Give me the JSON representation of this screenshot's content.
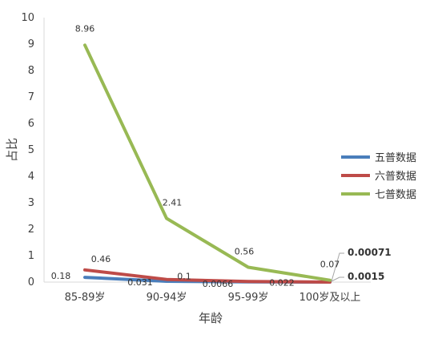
{
  "chart_data": {
    "type": "line",
    "title": "",
    "xlabel": "年龄",
    "ylabel": "占比",
    "categories": [
      "85-89岁",
      "90-94岁",
      "95-99岁",
      "100岁及以上"
    ],
    "ylim": [
      0,
      10
    ],
    "yticks": [
      "0",
      "1",
      "2",
      "3",
      "4",
      "5",
      "6",
      "7",
      "8",
      "9",
      "10"
    ],
    "grid": false,
    "legend_position": "right",
    "series": [
      {
        "name": "五普数据",
        "color": "#4a7ebb",
        "values": [
          0.18,
          0.031,
          0.0066,
          0.0015
        ],
        "labels": [
          "0.18",
          "0.031",
          "0.0066",
          "0.0015"
        ]
      },
      {
        "name": "六普数据",
        "color": "#be4b48",
        "values": [
          0.46,
          0.1,
          0.022,
          0.00071
        ],
        "labels": [
          "0.46",
          "0.1",
          "0.022",
          "0.00071"
        ]
      },
      {
        "name": "七普数据",
        "color": "#98b954",
        "values": [
          8.96,
          2.41,
          0.56,
          0.07
        ],
        "labels": [
          "8.96",
          "2.41",
          "0.56",
          "0.07"
        ]
      }
    ]
  }
}
